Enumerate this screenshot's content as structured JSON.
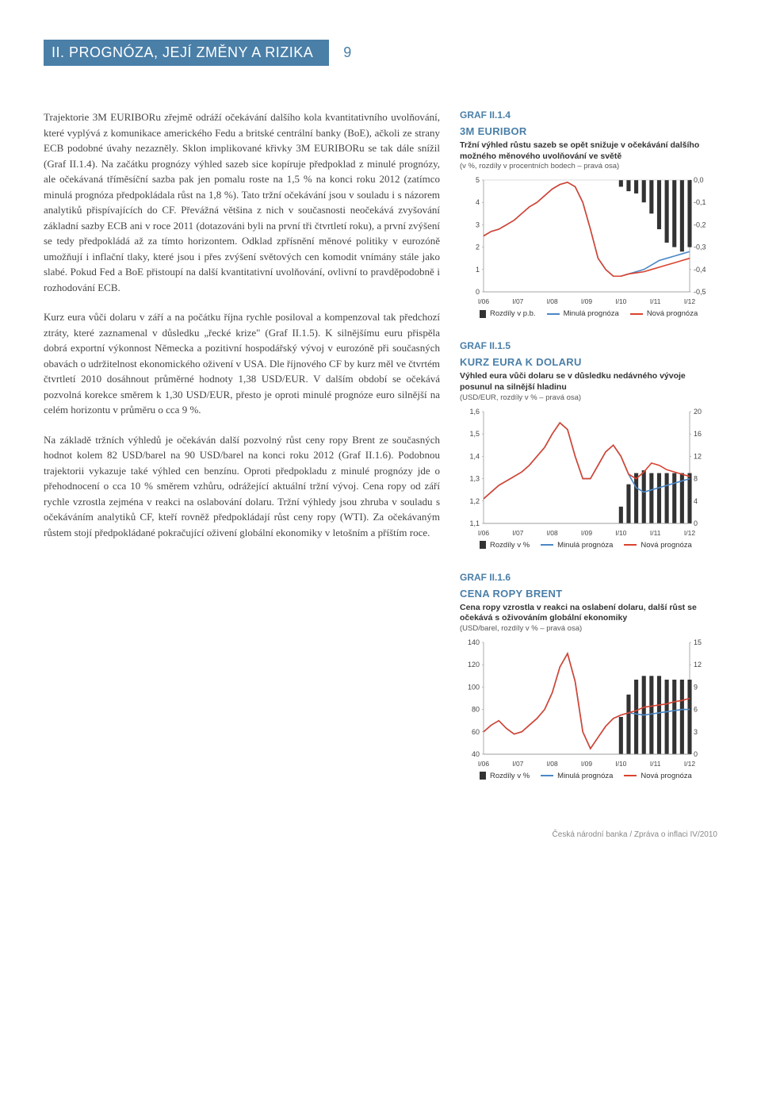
{
  "header": {
    "title": "II. PROGNÓZA, JEJÍ ZMĚNY A RIZIKA",
    "page_number": "9"
  },
  "footer": "Česká národní banka / Zpráva o inflaci IV/2010",
  "paragraphs": {
    "p1": "Trajektorie 3M EURIBORu zřejmě odráží očekávání dalšího kola kvantitativního uvolňování, které vyplývá z komunikace amerického Fedu a britské centrální banky (BoE), ačkoli ze strany ECB podobné úvahy nezazněly. Sklon implikované křivky 3M EURIBORu se tak dále snížil (Graf II.1.4). Na začátku prognózy výhled sazeb sice kopíruje předpoklad z minulé prognózy, ale očekávaná tříměsíční sazba pak jen pomalu roste na 1,5 % na konci roku 2012 (zatímco minulá prognóza předpokládala růst na 1,8 %). Tato tržní očekávání jsou v souladu i s názorem analytiků přispívajících do CF. Převážná většina z nich v současnosti neočekává zvyšování základní sazby ECB ani v roce 2011 (dotazováni byli na první tři čtvrtletí roku), a první zvýšení se tedy předpokládá až za tímto horizontem. Odklad zpřísnění měnové politiky v eurozóně umožňují i inflační tlaky, které jsou i přes zvýšení světových cen komodit vnímány stále jako slabé. Pokud Fed a BoE přistoupí na další kvantitativní uvolňování, ovlivní to pravděpodobně i rozhodování ECB.",
    "p2": "Kurz eura vůči dolaru v září a na počátku října rychle posiloval a kompenzoval tak předchozí ztráty, které zaznamenal v důsledku „řecké krize\" (Graf II.1.5). K silnějšímu euru přispěla dobrá exportní výkonnost Německa a pozitivní hospodářský vývoj v eurozóně při současných obavách o udržitelnost ekonomického oživení v USA. Dle říjnového CF by kurz měl ve čtvrtém čtvrtletí 2010 dosáhnout průměrné hodnoty 1,38 USD/EUR. V dalším období se očekává pozvolná korekce směrem k 1,30 USD/EUR, přesto je oproti minulé prognóze euro silnější na celém horizontu v průměru o cca 9 %.",
    "p3": "Na základě tržních výhledů je očekáván další pozvolný růst ceny ropy Brent ze současných hodnot kolem 82 USD/barel na 90 USD/barel na konci roku 2012 (Graf II.1.6). Podobnou trajektorii vykazuje také výhled cen benzínu. Oproti předpokladu z minulé prognózy jde o přehodnocení o cca 10 % směrem vzhůru, odrážející aktuální tržní vývoj. Cena ropy od září rychle vzrostla zejména v reakci na oslabování dolaru. Tržní výhledy jsou zhruba v souladu s očekáváním analytiků CF, kteří rovněž předpokládají růst ceny ropy (WTI). Za očekávaným růstem stojí předpokládané pokračující oživení globální ekonomiky v letošním a příštím roce."
  },
  "charts": {
    "c1": {
      "ref": "GRAF II.1.4",
      "title": "3M EURIBOR",
      "subtitle": "Tržní výhled růstu sazeb se opět snižuje v očekávání dalšího možného měnového uvolňování ve světě",
      "meta": "(v %, rozdíly v procentních bodech – pravá osa)",
      "x_labels": [
        "I/06",
        "I/07",
        "I/08",
        "I/09",
        "I/10",
        "I/11",
        "I/12"
      ],
      "left_ticks": [
        "5",
        "4",
        "3",
        "2",
        "1",
        "0"
      ],
      "right_ticks": [
        "0,0",
        "-0,1",
        "-0,2",
        "-0,3",
        "-0,4",
        "-0,5"
      ],
      "left_min": 0,
      "left_max": 5,
      "right_min": -0.5,
      "right_max": 0.0,
      "colors": {
        "bars": "#333333",
        "minula": "#4a88c7",
        "nova": "#d9432f",
        "axis": "#999999",
        "grid": "#ffffff"
      },
      "bars": [
        0,
        0,
        0,
        0,
        0,
        0,
        0,
        0,
        0,
        0,
        0,
        0,
        0,
        0,
        0,
        0,
        0,
        0,
        -0.03,
        -0.05,
        -0.06,
        -0.1,
        -0.15,
        -0.22,
        -0.28,
        -0.3,
        -0.32,
        -0.3
      ],
      "minula": [
        2.5,
        2.7,
        2.8,
        3.0,
        3.2,
        3.5,
        3.8,
        4.0,
        4.3,
        4.6,
        4.8,
        4.9,
        4.7,
        4.0,
        2.8,
        1.5,
        1.0,
        0.7,
        0.7,
        0.8,
        0.9,
        1.0,
        1.2,
        1.4,
        1.5,
        1.6,
        1.7,
        1.8
      ],
      "nova": [
        2.5,
        2.7,
        2.8,
        3.0,
        3.2,
        3.5,
        3.8,
        4.0,
        4.3,
        4.6,
        4.8,
        4.9,
        4.7,
        4.0,
        2.8,
        1.5,
        1.0,
        0.7,
        0.7,
        0.8,
        0.85,
        0.9,
        1.0,
        1.1,
        1.2,
        1.3,
        1.4,
        1.5
      ],
      "legend": {
        "bars": "Rozdíly v p.b.",
        "minula": "Minulá prognóza",
        "nova": "Nová prognóza"
      }
    },
    "c2": {
      "ref": "GRAF II.1.5",
      "title": "KURZ EURA K DOLARU",
      "subtitle": "Výhled eura vůči dolaru se v důsledku nedávného vývoje posunul na silnější hladinu",
      "meta": "(USD/EUR, rozdíly v % – pravá osa)",
      "x_labels": [
        "I/06",
        "I/07",
        "I/08",
        "I/09",
        "I/10",
        "I/11",
        "I/12"
      ],
      "left_ticks": [
        "1,6",
        "1,5",
        "1,4",
        "1,3",
        "1,2",
        "1,1"
      ],
      "right_ticks": [
        "20",
        "16",
        "12",
        "8",
        "4",
        "0"
      ],
      "left_min": 1.1,
      "left_max": 1.6,
      "right_min": 0,
      "right_max": 20,
      "colors": {
        "bars": "#333333",
        "minula": "#4a88c7",
        "nova": "#d9432f",
        "axis": "#999999"
      },
      "bars": [
        0,
        0,
        0,
        0,
        0,
        0,
        0,
        0,
        0,
        0,
        0,
        0,
        0,
        0,
        0,
        0,
        0,
        0,
        3,
        7,
        9,
        9.5,
        9,
        9,
        9,
        9,
        9,
        9
      ],
      "minula": [
        1.21,
        1.24,
        1.27,
        1.29,
        1.31,
        1.33,
        1.36,
        1.4,
        1.44,
        1.5,
        1.55,
        1.52,
        1.4,
        1.3,
        1.3,
        1.36,
        1.42,
        1.45,
        1.4,
        1.32,
        1.26,
        1.24,
        1.25,
        1.26,
        1.27,
        1.28,
        1.29,
        1.3
      ],
      "nova": [
        1.21,
        1.24,
        1.27,
        1.29,
        1.31,
        1.33,
        1.36,
        1.4,
        1.44,
        1.5,
        1.55,
        1.52,
        1.4,
        1.3,
        1.3,
        1.36,
        1.42,
        1.45,
        1.4,
        1.32,
        1.3,
        1.33,
        1.37,
        1.36,
        1.34,
        1.33,
        1.32,
        1.31
      ],
      "legend": {
        "bars": "Rozdíly v %",
        "minula": "Minulá prognóza",
        "nova": "Nová prognóza"
      }
    },
    "c3": {
      "ref": "GRAF II.1.6",
      "title": "CENA ROPY BRENT",
      "subtitle": "Cena ropy vzrostla v reakci na oslabení dolaru, další růst se očekává s oživováním globální ekonomiky",
      "meta": "(USD/barel, rozdíly v % – pravá osa)",
      "x_labels": [
        "I/06",
        "I/07",
        "I/08",
        "I/09",
        "I/10",
        "I/11",
        "I/12"
      ],
      "left_ticks": [
        "140",
        "120",
        "100",
        "80",
        "60",
        "40"
      ],
      "right_ticks": [
        "15",
        "12",
        "9",
        "6",
        "3",
        "0"
      ],
      "left_min": 40,
      "left_max": 140,
      "right_min": 0,
      "right_max": 15,
      "colors": {
        "bars": "#333333",
        "minula": "#4a88c7",
        "nova": "#d9432f",
        "axis": "#999999"
      },
      "bars": [
        0,
        0,
        0,
        0,
        0,
        0,
        0,
        0,
        0,
        0,
        0,
        0,
        0,
        0,
        0,
        0,
        0,
        0,
        5,
        8,
        10,
        10.5,
        10.5,
        10.5,
        10,
        10,
        10,
        10
      ],
      "minula": [
        60,
        66,
        70,
        63,
        58,
        60,
        66,
        72,
        80,
        95,
        118,
        130,
        105,
        60,
        45,
        55,
        65,
        72,
        75,
        77,
        76,
        75,
        76,
        77,
        78,
        79,
        80,
        80
      ],
      "nova": [
        60,
        66,
        70,
        63,
        58,
        60,
        66,
        72,
        80,
        95,
        118,
        130,
        105,
        60,
        45,
        55,
        65,
        72,
        75,
        77,
        79,
        82,
        83,
        84,
        85,
        87,
        88,
        90
      ],
      "legend": {
        "bars": "Rozdíly v %",
        "minula": "Minulá prognóza",
        "nova": "Nová prognóza"
      }
    }
  }
}
